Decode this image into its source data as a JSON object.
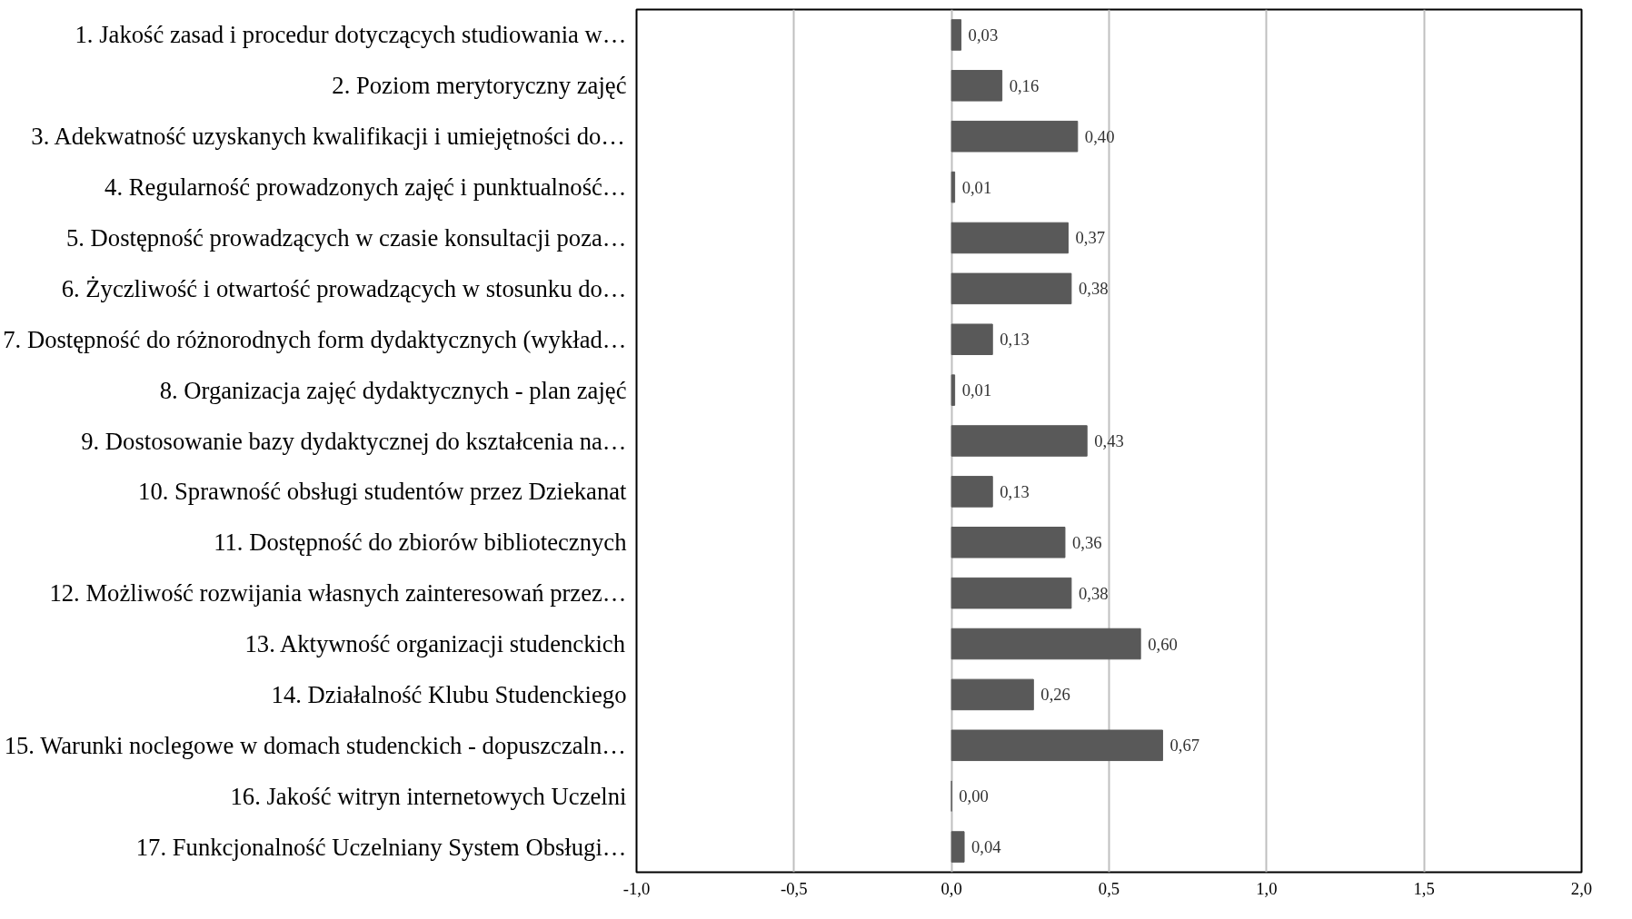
{
  "chart_data": {
    "type": "bar",
    "orientation": "horizontal",
    "categories": [
      "1. Jakość zasad i procedur dotyczących studiowania w…",
      "2. Poziom merytoryczny zajęć",
      "3. Adekwatność uzyskanych kwalifikacji i umiejętności do…",
      "4. Regularność prowadzonych zajęć i punktualność…",
      "5. Dostępność prowadzących w czasie konsultacji poza…",
      "6. Życzliwość i otwartość prowadzących w stosunku do…",
      "7. Dostępność do różnorodnych form dydaktycznych (wykład…",
      "8. Organizacja zajęć dydaktycznych - plan zajęć",
      "9. Dostosowanie bazy dydaktycznej do kształcenia na…",
      "10. Sprawność obsługi studentów przez Dziekanat",
      "11. Dostępność do zbiorów bibliotecznych",
      "12. Możliwość rozwijania własnych zainteresowań przez…",
      "13. Aktywność organizacji studenckich",
      "14. Działalność Klubu Studenckiego",
      "15. Warunki noclegowe w domach studenckich - dopuszczaln…",
      "16. Jakość witryn internetowych Uczelni",
      "17. Funkcjonalność Uczelniany System Obsługi…"
    ],
    "values": [
      0.03,
      0.16,
      0.4,
      0.01,
      0.37,
      0.38,
      0.13,
      0.01,
      0.43,
      0.13,
      0.36,
      0.38,
      0.6,
      0.26,
      0.67,
      0.0,
      0.04
    ],
    "value_labels": [
      "0,03",
      "0,16",
      "0,40",
      "0,01",
      "0,37",
      "0,38",
      "0,13",
      "0,01",
      "0,43",
      "0,13",
      "0,36",
      "0,38",
      "0,60",
      "0,26",
      "0,67",
      "0,00",
      "0,04"
    ],
    "color": "#595959",
    "xlim": [
      -1.0,
      2.0
    ],
    "xticks": [
      {
        "value": -1.0,
        "label": "-1,0"
      },
      {
        "value": -0.5,
        "label": "-0,5"
      },
      {
        "value": 0.0,
        "label": "0,0"
      },
      {
        "value": 0.5,
        "label": "0,5"
      },
      {
        "value": 1.0,
        "label": "1,0"
      },
      {
        "value": 1.5,
        "label": "1,5"
      },
      {
        "value": 2.0,
        "label": "2,0"
      }
    ],
    "grid": "x"
  }
}
